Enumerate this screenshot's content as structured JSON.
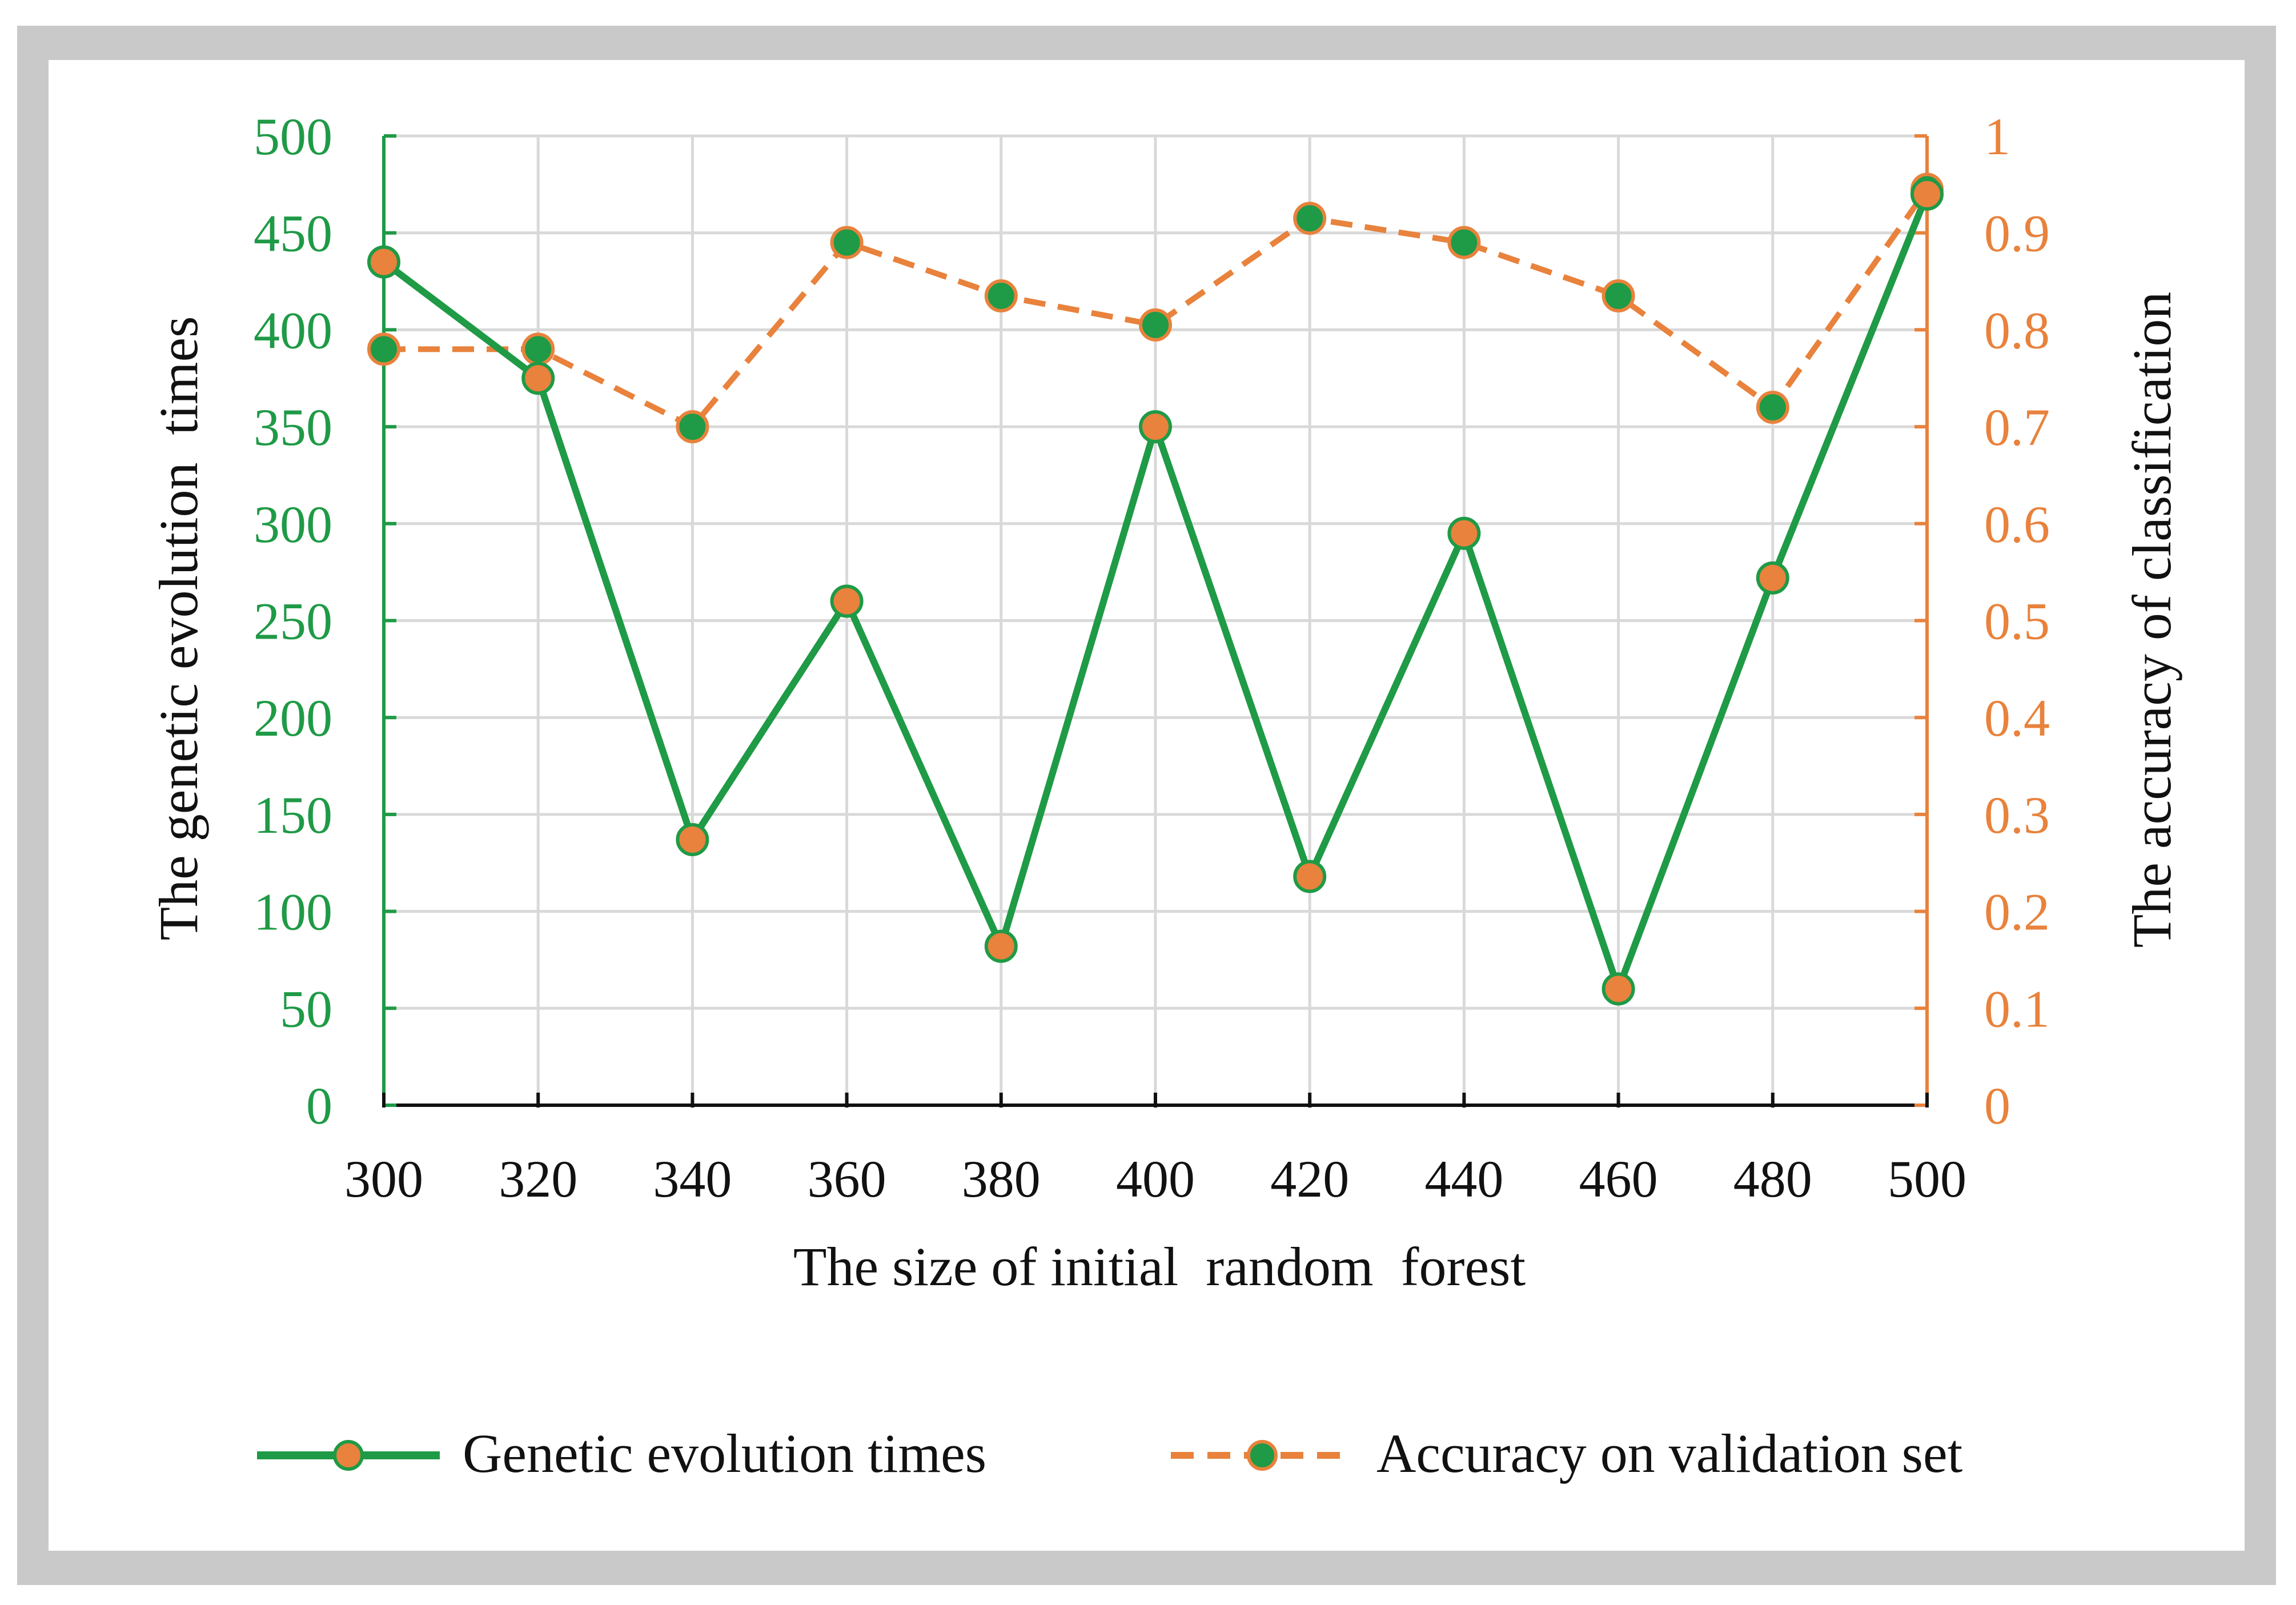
{
  "chart_data": {
    "type": "line",
    "title": "",
    "xlabel": "The size of initial  random  forest",
    "ylabel_left": "The genetic evolution  times",
    "ylabel_right": "The accuracy of classification",
    "categories": [
      300,
      320,
      340,
      360,
      380,
      400,
      420,
      440,
      460,
      480,
      500
    ],
    "ylim_left": [
      0,
      500
    ],
    "yticks_left": [
      "0",
      "50",
      "100",
      "150",
      "200",
      "250",
      "300",
      "350",
      "400",
      "450",
      "500"
    ],
    "ylim_right": [
      0,
      1
    ],
    "yticks_right": [
      "0",
      "0.1",
      "0.2",
      "0.3",
      "0.4",
      "0.5",
      "0.6",
      "0.7",
      "0.8",
      "0.9",
      "1"
    ],
    "grid": true,
    "legend_position": "bottom",
    "series": [
      {
        "name": "Genetic evolution times",
        "axis": "left",
        "line_style": "solid",
        "line_color": "#1f9a46",
        "marker_color": "#e8823c",
        "values": [
          435,
          375,
          137,
          260,
          82,
          350,
          118,
          295,
          60,
          272,
          470
        ]
      },
      {
        "name": "Accuracy on validation set",
        "axis": "right",
        "line_style": "dashed",
        "line_color": "#e8823c",
        "marker_color": "#1f9a46",
        "values": [
          0.78,
          0.78,
          0.7,
          0.89,
          0.835,
          0.805,
          0.915,
          0.89,
          0.835,
          0.72,
          0.945
        ]
      }
    ]
  },
  "colors": {
    "green": "#1f9a46",
    "orange": "#e8823c",
    "grid": "#d9d9d9",
    "text": "#111111"
  }
}
